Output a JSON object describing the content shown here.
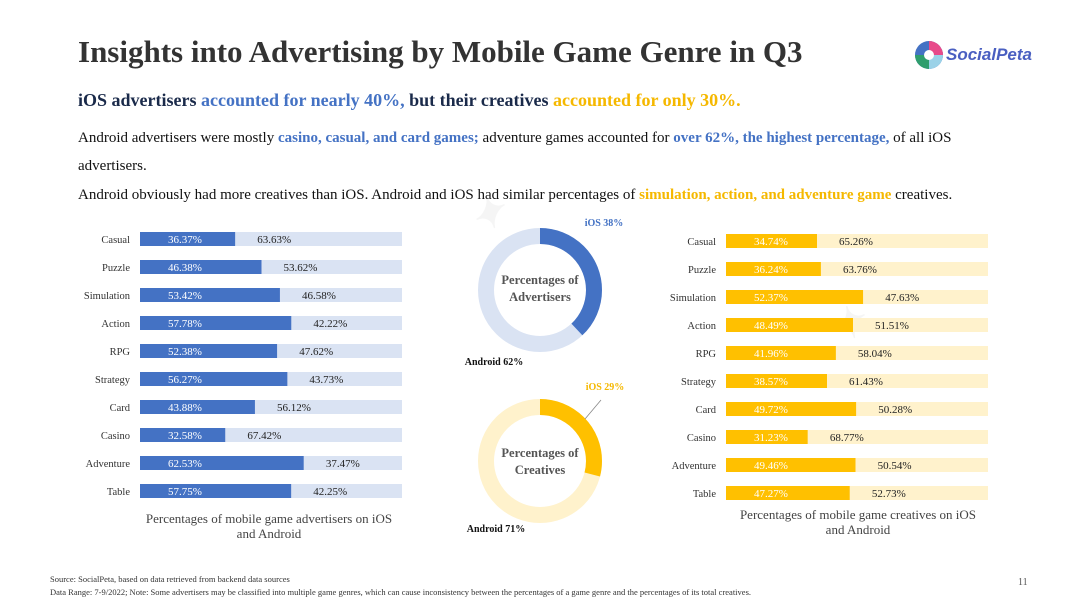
{
  "header": {
    "title": "Insights into Advertising by Mobile Game Genre in Q3",
    "logo_text": "SocialPeta",
    "sub_a": "iOS advertisers ",
    "sub_b": "accounted for nearly 40%,",
    "sub_c": " but their creatives ",
    "sub_d": "accounted for only 30%."
  },
  "body": {
    "p1_a": "Android advertisers were mostly ",
    "p1_b": "casino, casual, and card games;",
    "p1_c": " adventure games accounted for ",
    "p1_d": "over 62%, the highest percentage,",
    "p1_e": " of all iOS advertisers.",
    "p2_a": "Android obviously had more creatives than iOS. Android and iOS had similar percentages of ",
    "p2_b": "simulation, action, and adventure game",
    "p2_c": " creatives."
  },
  "colors": {
    "ios_adv": "#4472c4",
    "android_adv": "#dae3f3",
    "ios_cre": "#ffc000",
    "android_cre": "#fff2cc"
  },
  "chart_data": [
    {
      "type": "bar",
      "orientation": "horizontal-stacked",
      "title": "Percentages of mobile game advertisers on iOS and Android",
      "categories": [
        "Casual",
        "Puzzle",
        "Simulation",
        "Action",
        "RPG",
        "Strategy",
        "Card",
        "Casino",
        "Adventure",
        "Table"
      ],
      "series": [
        {
          "name": "iOS",
          "values": [
            36.37,
            46.38,
            53.42,
            57.78,
            52.38,
            56.27,
            43.88,
            32.58,
            62.53,
            57.75
          ],
          "labels": [
            "36.37%",
            "46.38%",
            "53.42%",
            "57.78%",
            "52.38%",
            "56.27%",
            "43.88%",
            "32.58%",
            "62.53%",
            "57.75%"
          ]
        },
        {
          "name": "Android",
          "values": [
            63.63,
            53.62,
            46.58,
            42.22,
            47.62,
            43.73,
            56.12,
            67.42,
            37.47,
            42.25
          ],
          "labels": [
            "63.63%",
            "53.62%",
            "46.58%",
            "42.22%",
            "47.62%",
            "43.73%",
            "56.12%",
            "67.42%",
            "37.47%",
            "42.25%"
          ]
        }
      ],
      "xlim": [
        0,
        100
      ]
    },
    {
      "type": "pie",
      "title": "Percentages of Advertisers",
      "slices": [
        {
          "name": "iOS",
          "value": 38,
          "label": "iOS 38%"
        },
        {
          "name": "Android",
          "value": 62,
          "label": "Android 62%"
        }
      ]
    },
    {
      "type": "pie",
      "title": "Percentages of Creatives",
      "slices": [
        {
          "name": "iOS",
          "value": 29,
          "label": "iOS 29%"
        },
        {
          "name": "Android",
          "value": 71,
          "label": "Android 71%"
        }
      ]
    },
    {
      "type": "bar",
      "orientation": "horizontal-stacked",
      "title": "Percentages of mobile game creatives on iOS and Android",
      "categories": [
        "Casual",
        "Puzzle",
        "Simulation",
        "Action",
        "RPG",
        "Strategy",
        "Card",
        "Casino",
        "Adventure",
        "Table"
      ],
      "series": [
        {
          "name": "iOS",
          "values": [
            34.74,
            36.24,
            52.37,
            48.49,
            41.96,
            38.57,
            49.72,
            31.23,
            49.46,
            47.27
          ],
          "labels": [
            "34.74%",
            "36.24%",
            "52.37%",
            "48.49%",
            "41.96%",
            "38.57%",
            "49.72%",
            "31.23%",
            "49.46%",
            "47.27%"
          ]
        },
        {
          "name": "Android",
          "values": [
            65.26,
            63.76,
            47.63,
            51.51,
            58.04,
            61.43,
            50.28,
            68.77,
            50.54,
            52.73
          ],
          "labels": [
            "65.26%",
            "63.76%",
            "47.63%",
            "51.51%",
            "58.04%",
            "61.43%",
            "50.28%",
            "68.77%",
            "50.54%",
            "52.73%"
          ]
        }
      ],
      "xlim": [
        0,
        100
      ]
    }
  ],
  "chart_titles": {
    "left_1": "Percentages of mobile game advertisers on iOS",
    "left_2": "and Android",
    "right_1": "Percentages of mobile game creatives on iOS",
    "right_2": "and Android",
    "donut1_1": "Percentages of",
    "donut1_2": "Advertisers",
    "donut2_1": "Percentages of",
    "donut2_2": "Creatives"
  },
  "footer": {
    "source": "Source: SocialPeta, based on data retrieved from backend data sources",
    "note": "Data Range: 7-9/2022;  Note: Some advertisers may be classified into multiple game genres, which can cause inconsistency between the percentages of a game genre and the percentages of its total creatives.",
    "page_number": "11"
  }
}
